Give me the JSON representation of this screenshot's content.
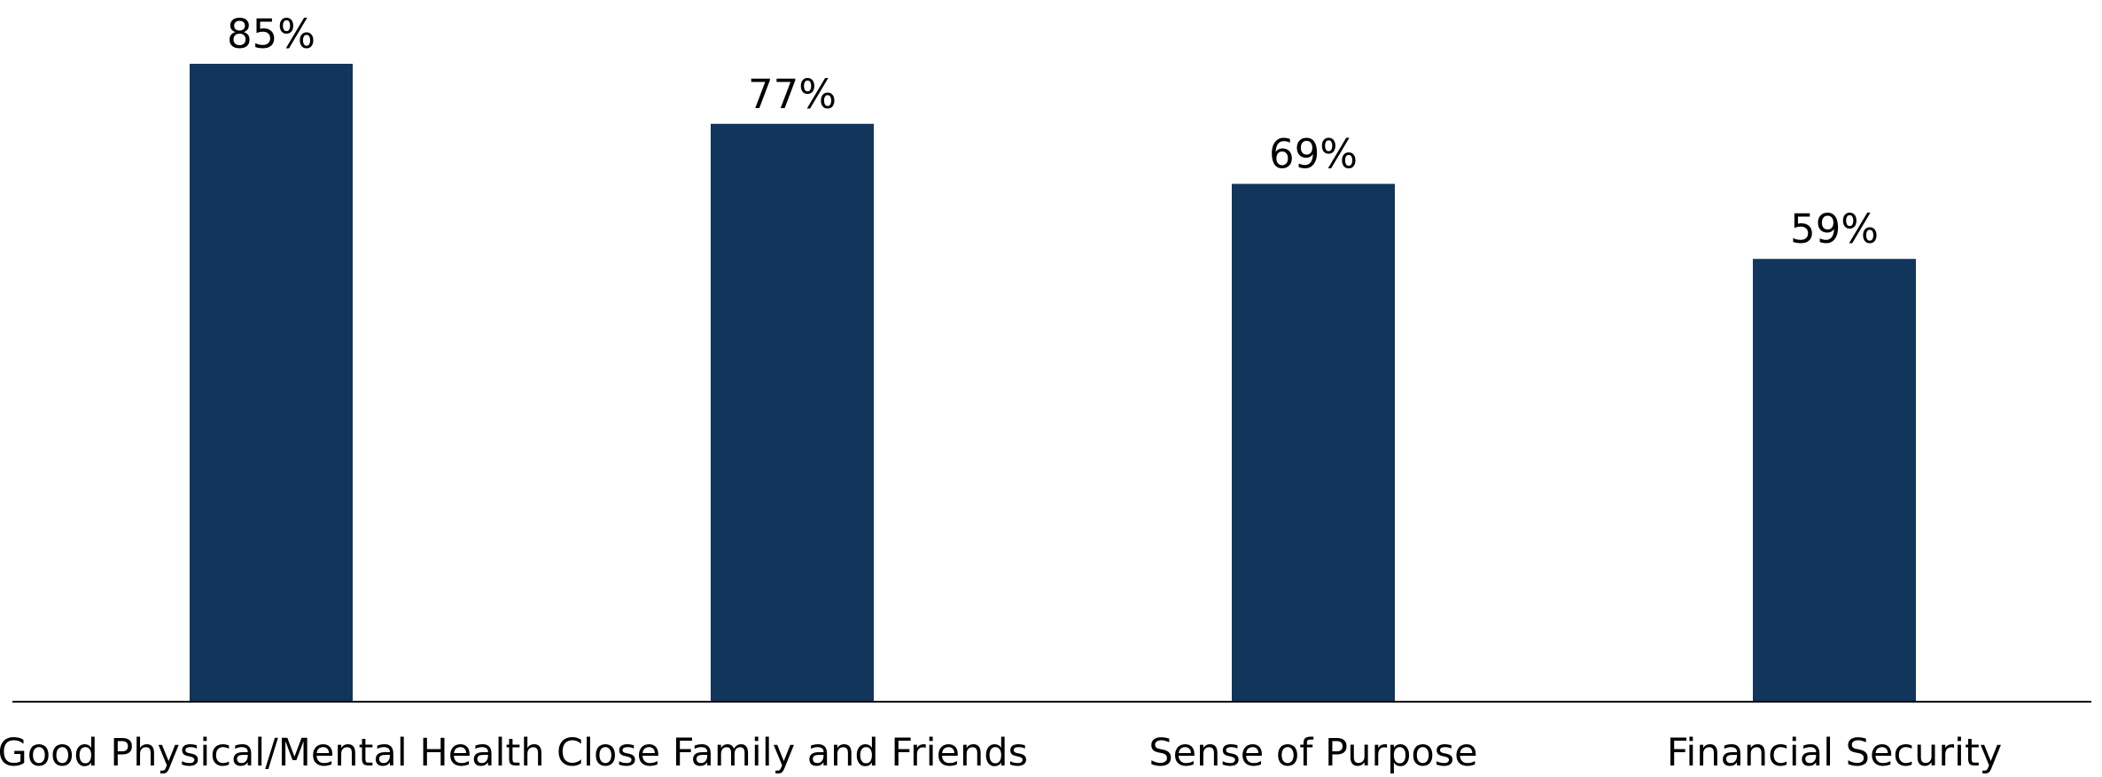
{
  "chart_data": {
    "type": "bar",
    "categories": [
      "Good Physical/Mental Health",
      "Close Family and Friends",
      "Sense of Purpose",
      "Financial Security"
    ],
    "values": [
      85,
      77,
      69,
      59
    ],
    "value_labels": [
      "85%",
      "77%",
      "69%",
      "59%"
    ],
    "title": "",
    "xlabel": "",
    "ylabel": "",
    "ylim": [
      0,
      85
    ],
    "grid": false,
    "legend": "none",
    "bar_color": "#12355B",
    "axis_color": "#000000"
  }
}
